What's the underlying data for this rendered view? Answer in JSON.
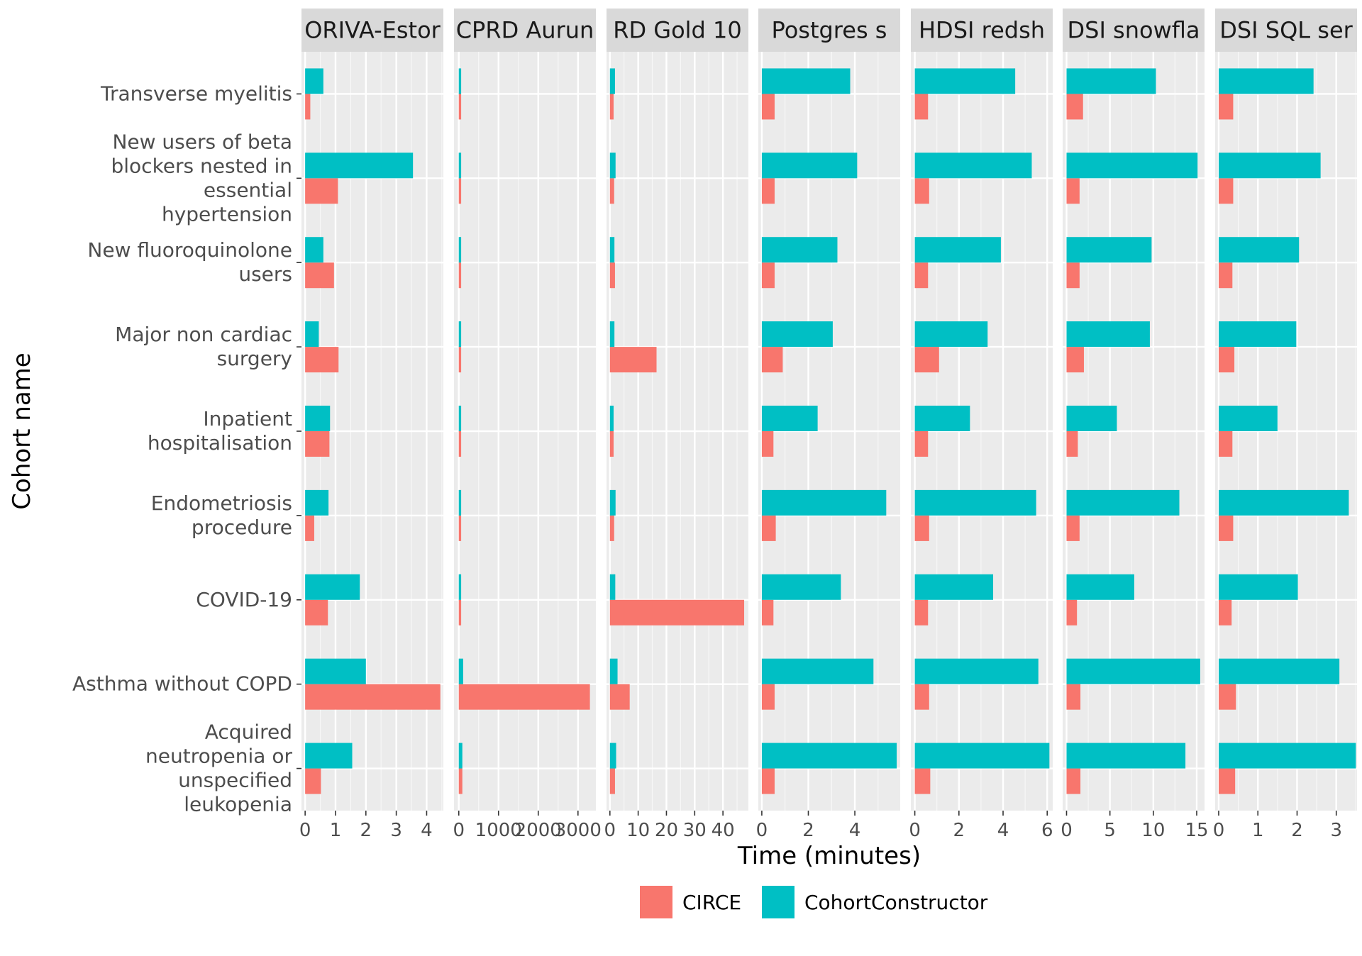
{
  "chart_data": {
    "type": "bar",
    "orientation": "horizontal",
    "facets": [
      "ORIVA-Estor",
      "CPRD Aurun",
      "RD Gold 10",
      "Postgres s",
      "HDSI redsh",
      "DSI snowfla",
      "DSI SQL ser"
    ],
    "categories": [
      "Transverse myelitis",
      "New users of beta blockers nested in essential hypertension",
      "New fluoroquinolone users",
      "Major non cardiac surgery",
      "Inpatient hospitalisation",
      "Endometriosis procedure",
      "COVID-19",
      "Asthma without COPD",
      "Acquired neutropenia or unspecified leukopenia"
    ],
    "category_lines": [
      [
        "Transverse myelitis"
      ],
      [
        "New users of beta",
        "blockers nested in",
        "essential",
        "hypertension"
      ],
      [
        "New fluoroquinolone",
        "users"
      ],
      [
        "Major non cardiac",
        "surgery"
      ],
      [
        "Inpatient",
        "hospitalisation"
      ],
      [
        "Endometriosis",
        "procedure"
      ],
      [
        "COVID-19"
      ],
      [
        "Asthma without COPD"
      ],
      [
        "Acquired",
        "neutropenia or",
        "unspecified",
        "leukopenia"
      ]
    ],
    "xlabel": "Time (minutes)",
    "ylabel": "Cohort name",
    "legend": {
      "position": "bottom",
      "items": [
        {
          "name": "CIRCE",
          "color": "#F8766D"
        },
        {
          "name": "CohortConstructor",
          "color": "#00BFC4"
        }
      ]
    },
    "panels": [
      {
        "facet": "ORIVA-Estor",
        "xlim": [
          -0.12,
          4.55
        ],
        "ticks": [
          0,
          1,
          2,
          3,
          4
        ],
        "tick_labels": [
          "0",
          "1",
          "2",
          "3",
          "4"
        ],
        "series": [
          {
            "name": "CIRCE",
            "values": [
              0.17,
              1.08,
              0.95,
              1.1,
              0.8,
              0.3,
              0.75,
              4.45,
              0.52
            ]
          },
          {
            "name": "CohortConstructor",
            "values": [
              0.6,
              3.55,
              0.6,
              0.45,
              0.82,
              0.77,
              1.8,
              2.0,
              1.55
            ]
          }
        ]
      },
      {
        "facet": "CPRD Aurun",
        "xlim": [
          -120,
          3450
        ],
        "ticks": [
          0,
          1000,
          2000,
          3000
        ],
        "tick_labels": [
          "0",
          "1000",
          "2000",
          "3000"
        ],
        "series": [
          {
            "name": "CIRCE",
            "values": [
              60,
              60,
              60,
              60,
              60,
              60,
              60,
              3300,
              90
            ]
          },
          {
            "name": "CohortConstructor",
            "values": [
              60,
              60,
              60,
              60,
              60,
              60,
              60,
              110,
              90
            ]
          }
        ]
      },
      {
        "facet": "RD Gold 10",
        "xlim": [
          -1.2,
          49
        ],
        "ticks": [
          0,
          10,
          20,
          30,
          40
        ],
        "tick_labels": [
          "0",
          "10",
          "20",
          "30",
          "40"
        ],
        "series": [
          {
            "name": "CIRCE",
            "values": [
              1.3,
              1.5,
              1.8,
              16.5,
              1.3,
              1.5,
              47.5,
              7,
              1.8
            ]
          },
          {
            "name": "CohortConstructor",
            "values": [
              1.8,
              2.0,
              1.6,
              1.6,
              1.3,
              2.0,
              1.9,
              2.7,
              2.2
            ]
          }
        ]
      },
      {
        "facet": "Postgres s",
        "xlim": [
          -0.15,
          5.95
        ],
        "ticks": [
          0,
          2,
          4
        ],
        "tick_labels": [
          "0",
          "2",
          "4"
        ],
        "series": [
          {
            "name": "CIRCE",
            "values": [
              0.55,
              0.55,
              0.55,
              0.9,
              0.5,
              0.6,
              0.5,
              0.55,
              0.55
            ]
          },
          {
            "name": "CohortConstructor",
            "values": [
              3.8,
              4.1,
              3.25,
              3.05,
              2.4,
              5.35,
              3.4,
              4.8,
              5.8
            ]
          }
        ]
      },
      {
        "facet": "HDSI redsh",
        "xlim": [
          -0.18,
          6.25
        ],
        "ticks": [
          0,
          2,
          4,
          6
        ],
        "tick_labels": [
          "0",
          "2",
          "4",
          "6"
        ],
        "series": [
          {
            "name": "CIRCE",
            "values": [
              0.6,
              0.65,
              0.6,
              1.1,
              0.6,
              0.65,
              0.6,
              0.65,
              0.7
            ]
          },
          {
            "name": "CohortConstructor",
            "values": [
              4.55,
              5.3,
              3.9,
              3.3,
              2.5,
              5.5,
              3.55,
              5.6,
              6.1
            ]
          }
        ]
      },
      {
        "facet": "DSI snowfla",
        "xlim": [
          -0.45,
          15.9
        ],
        "ticks": [
          0,
          5,
          10,
          15
        ],
        "tick_labels": [
          "0",
          "5",
          "10",
          "15"
        ],
        "series": [
          {
            "name": "CIRCE",
            "values": [
              1.9,
              1.5,
              1.5,
              2.0,
              1.3,
              1.5,
              1.2,
              1.6,
              1.6
            ]
          },
          {
            "name": "CohortConstructor",
            "values": [
              10.3,
              15.1,
              9.8,
              9.6,
              5.8,
              13.0,
              7.8,
              15.4,
              13.7
            ]
          }
        ]
      },
      {
        "facet": "DSI SQL ser",
        "xlim": [
          -0.09,
          3.53
        ],
        "ticks": [
          0,
          1,
          2,
          3
        ],
        "tick_labels": [
          "0",
          "1",
          "2",
          "3"
        ],
        "series": [
          {
            "name": "CIRCE",
            "values": [
              0.37,
              0.37,
              0.35,
              0.4,
              0.35,
              0.37,
              0.33,
              0.44,
              0.42
            ]
          },
          {
            "name": "CohortConstructor",
            "values": [
              2.42,
              2.6,
              2.05,
              1.98,
              1.5,
              3.32,
              2.02,
              3.08,
              3.5
            ]
          }
        ]
      }
    ]
  }
}
